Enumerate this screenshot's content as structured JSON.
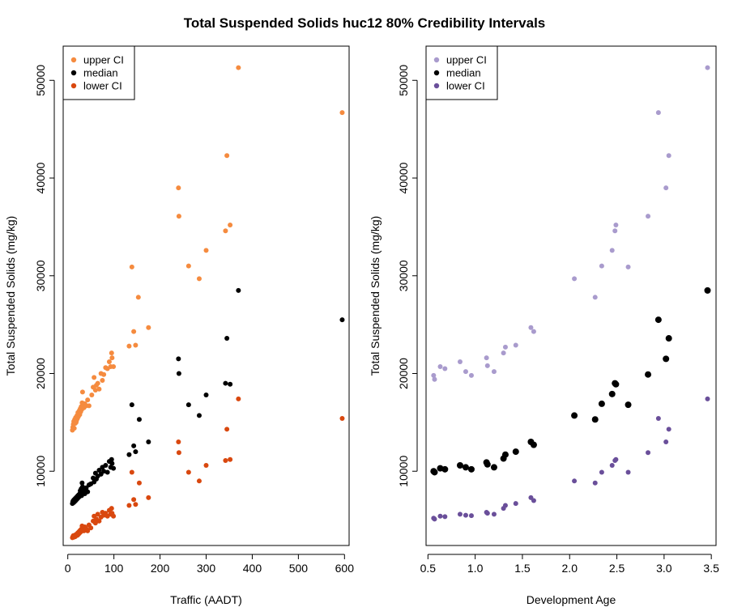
{
  "title": "Total Suspended Solids huc12 80% Credibility Intervals",
  "chart_data": [
    {
      "type": "scatter",
      "xlabel": "Traffic (AADT)",
      "ylabel": "Total Suspended Solids (mg/kg)",
      "xlim": [
        -10,
        610
      ],
      "ylim": [
        2400,
        53500
      ],
      "xticks": [
        0,
        100,
        200,
        300,
        400,
        500,
        600
      ],
      "yticks": [
        10000,
        20000,
        30000,
        40000,
        50000
      ],
      "legend_position": "top-left",
      "series": [
        {
          "name": "upper CI",
          "color": "#f58b3f",
          "points": [
            [
              10,
              14200
            ],
            [
              11,
              14500
            ],
            [
              12,
              14800
            ],
            [
              13,
              15100
            ],
            [
              14,
              14400
            ],
            [
              15,
              15300
            ],
            [
              16,
              14900
            ],
            [
              17,
              15500
            ],
            [
              18,
              15000
            ],
            [
              19,
              15200
            ],
            [
              20,
              15700
            ],
            [
              21,
              15400
            ],
            [
              22,
              16000
            ],
            [
              23,
              15600
            ],
            [
              24,
              15900
            ],
            [
              25,
              16200
            ],
            [
              26,
              15800
            ],
            [
              27,
              16400
            ],
            [
              28,
              16100
            ],
            [
              29,
              16600
            ],
            [
              30,
              16300
            ],
            [
              31,
              17000
            ],
            [
              32,
              18100
            ],
            [
              33,
              16800
            ],
            [
              35,
              16500
            ],
            [
              37,
              16900
            ],
            [
              40,
              16700
            ],
            [
              43,
              17300
            ],
            [
              46,
              16700
            ],
            [
              52,
              17800
            ],
            [
              55,
              18600
            ],
            [
              57,
              19600
            ],
            [
              60,
              18300
            ],
            [
              62,
              18800
            ],
            [
              65,
              19000
            ],
            [
              68,
              18400
            ],
            [
              72,
              20000
            ],
            [
              75,
              19300
            ],
            [
              78,
              19900
            ],
            [
              82,
              20600
            ],
            [
              86,
              20500
            ],
            [
              90,
              21200
            ],
            [
              93,
              20700
            ],
            [
              95,
              22100
            ],
            [
              96,
              21600
            ],
            [
              99,
              20700
            ],
            [
              133,
              22800
            ],
            [
              139,
              30900
            ],
            [
              143,
              24300
            ],
            [
              147,
              22900
            ],
            [
              153,
              27800
            ],
            [
              175,
              24700
            ],
            [
              240,
              39000
            ],
            [
              241,
              36100
            ],
            [
              262,
              31000
            ],
            [
              285,
              29700
            ],
            [
              300,
              32600
            ],
            [
              342,
              34600
            ],
            [
              345,
              42300
            ],
            [
              352,
              35200
            ],
            [
              370,
              51300
            ],
            [
              595,
              46700
            ]
          ]
        },
        {
          "name": "median",
          "color": "#000000",
          "points": [
            [
              10,
              6700
            ],
            [
              11,
              6900
            ],
            [
              12,
              7000
            ],
            [
              13,
              6800
            ],
            [
              14,
              7100
            ],
            [
              15,
              6900
            ],
            [
              16,
              7200
            ],
            [
              17,
              7000
            ],
            [
              18,
              7300
            ],
            [
              19,
              7100
            ],
            [
              20,
              7400
            ],
            [
              21,
              7200
            ],
            [
              22,
              7500
            ],
            [
              23,
              7300
            ],
            [
              24,
              7600
            ],
            [
              25,
              7400
            ],
            [
              26,
              7700
            ],
            [
              27,
              8000
            ],
            [
              28,
              7800
            ],
            [
              29,
              8200
            ],
            [
              30,
              7500
            ],
            [
              31,
              8800
            ],
            [
              32,
              8400
            ],
            [
              33,
              7900
            ],
            [
              35,
              8100
            ],
            [
              37,
              7700
            ],
            [
              40,
              8300
            ],
            [
              43,
              7900
            ],
            [
              46,
              8600
            ],
            [
              50,
              8700
            ],
            [
              55,
              9300
            ],
            [
              57,
              8900
            ],
            [
              60,
              9800
            ],
            [
              62,
              9200
            ],
            [
              65,
              9500
            ],
            [
              68,
              10100
            ],
            [
              72,
              9700
            ],
            [
              75,
              10400
            ],
            [
              78,
              10000
            ],
            [
              82,
              10600
            ],
            [
              86,
              9900
            ],
            [
              90,
              11000
            ],
            [
              93,
              10400
            ],
            [
              95,
              11200
            ],
            [
              96,
              10800
            ],
            [
              99,
              10300
            ],
            [
              133,
              11700
            ],
            [
              139,
              16800
            ],
            [
              143,
              12600
            ],
            [
              147,
              12000
            ],
            [
              155,
              15300
            ],
            [
              175,
              13000
            ],
            [
              240,
              21500
            ],
            [
              241,
              20000
            ],
            [
              262,
              16800
            ],
            [
              285,
              15700
            ],
            [
              300,
              17800
            ],
            [
              342,
              19000
            ],
            [
              345,
              23600
            ],
            [
              352,
              18900
            ],
            [
              370,
              28500
            ],
            [
              595,
              25500
            ]
          ]
        },
        {
          "name": "lower CI",
          "color": "#d9480f",
          "points": [
            [
              10,
              3200
            ],
            [
              11,
              3300
            ],
            [
              12,
              3400
            ],
            [
              13,
              3250
            ],
            [
              14,
              3350
            ],
            [
              15,
              3450
            ],
            [
              16,
              3300
            ],
            [
              17,
              3500
            ],
            [
              18,
              3400
            ],
            [
              19,
              3550
            ],
            [
              20,
              3600
            ],
            [
              21,
              3450
            ],
            [
              22,
              3700
            ],
            [
              23,
              3550
            ],
            [
              24,
              3800
            ],
            [
              25,
              3650
            ],
            [
              26,
              3900
            ],
            [
              27,
              3750
            ],
            [
              28,
              4000
            ],
            [
              29,
              3850
            ],
            [
              30,
              4100
            ],
            [
              31,
              4400
            ],
            [
              32,
              4000
            ],
            [
              33,
              4200
            ],
            [
              35,
              3900
            ],
            [
              37,
              4300
            ],
            [
              40,
              4100
            ],
            [
              43,
              3900
            ],
            [
              46,
              4500
            ],
            [
              50,
              4200
            ],
            [
              55,
              4900
            ],
            [
              57,
              5400
            ],
            [
              60,
              4700
            ],
            [
              62,
              5100
            ],
            [
              65,
              5600
            ],
            [
              68,
              4900
            ],
            [
              72,
              5300
            ],
            [
              75,
              5800
            ],
            [
              78,
              5500
            ],
            [
              82,
              5700
            ],
            [
              86,
              5400
            ],
            [
              90,
              6000
            ],
            [
              93,
              5600
            ],
            [
              95,
              6200
            ],
            [
              96,
              5700
            ],
            [
              99,
              5400
            ],
            [
              133,
              6500
            ],
            [
              139,
              9900
            ],
            [
              143,
              7100
            ],
            [
              147,
              6600
            ],
            [
              155,
              8800
            ],
            [
              175,
              7300
            ],
            [
              240,
              13000
            ],
            [
              241,
              11900
            ],
            [
              262,
              9900
            ],
            [
              285,
              9000
            ],
            [
              300,
              10600
            ],
            [
              342,
              11100
            ],
            [
              345,
              14300
            ],
            [
              352,
              11200
            ],
            [
              370,
              17400
            ],
            [
              595,
              15400
            ]
          ]
        }
      ]
    },
    {
      "type": "scatter",
      "xlabel": "Development Age",
      "ylabel": "Total Suspended Solids (mg/kg)",
      "xlim": [
        0.48,
        3.55
      ],
      "ylim": [
        2400,
        53500
      ],
      "xticks": [
        0.5,
        1.0,
        1.5,
        2.0,
        2.5,
        3.0,
        3.5
      ],
      "xtick_labels": [
        "0.5",
        "1.0",
        "1.5",
        "2.0",
        "2.5",
        "3.0",
        "3.5"
      ],
      "yticks": [
        10000,
        20000,
        30000,
        40000,
        50000
      ],
      "legend_position": "top-left",
      "series": [
        {
          "name": "upper CI",
          "color": "#a99bcd",
          "points": [
            [
              0.56,
              19800
            ],
            [
              0.57,
              19400
            ],
            [
              0.63,
              20700
            ],
            [
              0.68,
              20500
            ],
            [
              0.84,
              21200
            ],
            [
              0.9,
              20200
            ],
            [
              0.96,
              19800
            ],
            [
              1.12,
              21600
            ],
            [
              1.13,
              20800
            ],
            [
              1.2,
              20200
            ],
            [
              1.3,
              22100
            ],
            [
              1.32,
              22700
            ],
            [
              1.43,
              22900
            ],
            [
              1.59,
              24700
            ],
            [
              1.62,
              24300
            ],
            [
              2.05,
              29700
            ],
            [
              2.27,
              27800
            ],
            [
              2.34,
              31000
            ],
            [
              2.45,
              32600
            ],
            [
              2.48,
              34600
            ],
            [
              2.49,
              35200
            ],
            [
              2.62,
              30900
            ],
            [
              2.83,
              36100
            ],
            [
              2.94,
              46700
            ],
            [
              3.02,
              39000
            ],
            [
              3.05,
              42300
            ],
            [
              3.46,
              51300
            ]
          ]
        },
        {
          "name": "median",
          "color": "#000000",
          "points": [
            [
              0.56,
              10000
            ],
            [
              0.57,
              9900
            ],
            [
              0.63,
              10300
            ],
            [
              0.68,
              10200
            ],
            [
              0.84,
              10600
            ],
            [
              0.9,
              10400
            ],
            [
              0.96,
              10200
            ],
            [
              1.12,
              10900
            ],
            [
              1.13,
              10700
            ],
            [
              1.2,
              10400
            ],
            [
              1.3,
              11300
            ],
            [
              1.32,
              11700
            ],
            [
              1.43,
              12000
            ],
            [
              1.59,
              13000
            ],
            [
              1.62,
              12700
            ],
            [
              2.05,
              15700
            ],
            [
              2.27,
              15300
            ],
            [
              2.34,
              16900
            ],
            [
              2.45,
              17900
            ],
            [
              2.48,
              19000
            ],
            [
              2.49,
              18900
            ],
            [
              2.62,
              16800
            ],
            [
              2.83,
              19900
            ],
            [
              2.94,
              25500
            ],
            [
              3.02,
              21500
            ],
            [
              3.05,
              23600
            ],
            [
              3.46,
              28500
            ]
          ]
        },
        {
          "name": "lower CI",
          "color": "#6a4f9a",
          "points": [
            [
              0.56,
              5200
            ],
            [
              0.57,
              5100
            ],
            [
              0.63,
              5400
            ],
            [
              0.68,
              5350
            ],
            [
              0.84,
              5600
            ],
            [
              0.9,
              5500
            ],
            [
              0.96,
              5450
            ],
            [
              1.12,
              5800
            ],
            [
              1.13,
              5700
            ],
            [
              1.2,
              5600
            ],
            [
              1.3,
              6200
            ],
            [
              1.32,
              6500
            ],
            [
              1.43,
              6700
            ],
            [
              1.59,
              7300
            ],
            [
              1.62,
              7000
            ],
            [
              2.05,
              9000
            ],
            [
              2.27,
              8800
            ],
            [
              2.34,
              9900
            ],
            [
              2.45,
              10600
            ],
            [
              2.48,
              11100
            ],
            [
              2.49,
              11200
            ],
            [
              2.62,
              9900
            ],
            [
              2.83,
              11900
            ],
            [
              2.94,
              15400
            ],
            [
              3.02,
              13000
            ],
            [
              3.05,
              14300
            ],
            [
              3.46,
              17400
            ]
          ]
        }
      ]
    }
  ]
}
